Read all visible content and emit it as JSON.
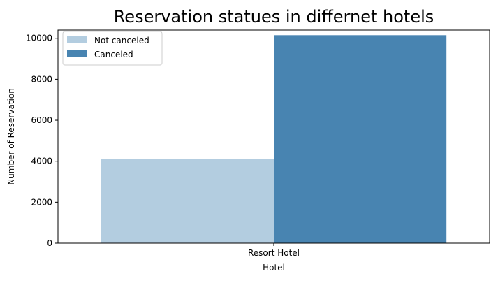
{
  "chart_data": {
    "type": "bar",
    "title": "Reservation statues in differnet hotels",
    "xlabel": "Hotel",
    "ylabel": "Number of Reservation",
    "categories": [
      "Resort Hotel"
    ],
    "series": [
      {
        "name": "Not canceled",
        "values": [
          4100
        ],
        "color": "#b3cde0"
      },
      {
        "name": "Canceled",
        "values": [
          10150
        ],
        "color": "#4884b1"
      }
    ],
    "ylim": [
      0,
      10400
    ],
    "yticks": [
      0,
      2000,
      4000,
      6000,
      8000,
      10000
    ],
    "legend_position": "top-left",
    "grid": false
  }
}
